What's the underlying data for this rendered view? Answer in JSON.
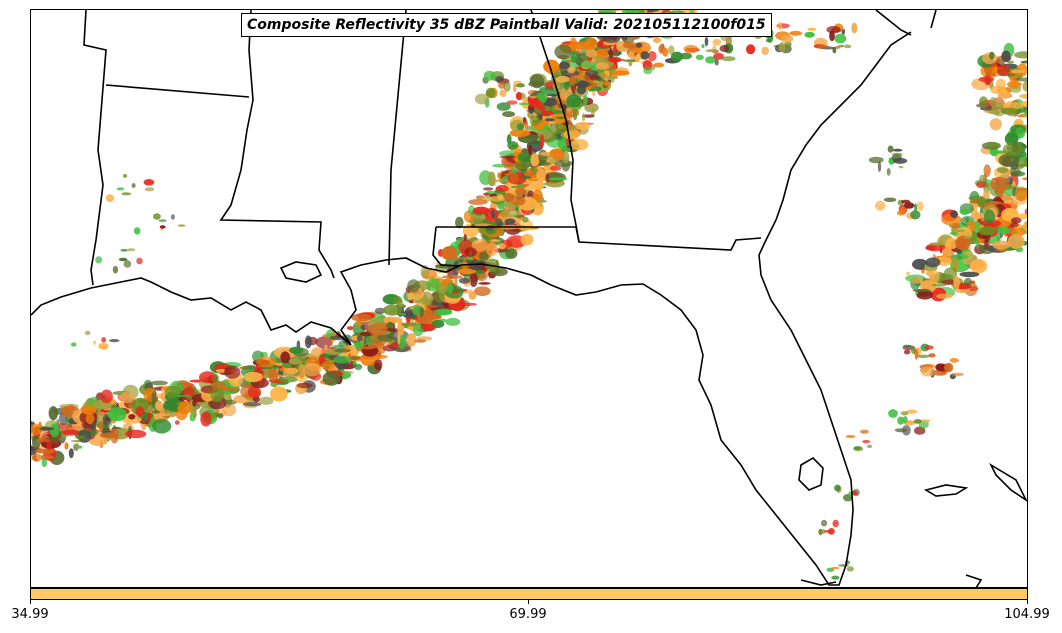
{
  "title": "Composite Reflectivity 35 dBZ Paintball Valid: 202105112100f015",
  "map": {
    "region": "Southeastern United States and Gulf of Mexico",
    "member_colors": [
      "#e8261b",
      "#f07d0a",
      "#f4a84b",
      "#ffb347",
      "#3dbf3d",
      "#2e8b2e",
      "#6b8e23",
      "#8b1a1a",
      "#556b2f",
      "#4a4a4a",
      "#a0a040",
      "#d2691e"
    ]
  },
  "colorbar": {
    "color": "#ffc966",
    "ticks": [
      "34.99",
      "69.99",
      "104.99"
    ]
  }
}
